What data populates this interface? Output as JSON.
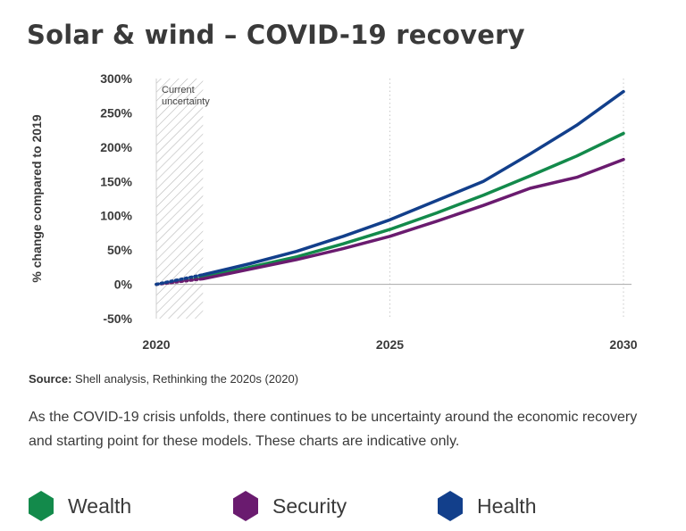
{
  "title": "Solar & wind – COVID-19 recovery",
  "chart_data": {
    "type": "line",
    "ylabel": "% change compared to 2019",
    "y_ticks": [
      "300%",
      "250%",
      "200%",
      "150%",
      "100%",
      "50%",
      "0%",
      "-50%"
    ],
    "y_tick_values": [
      300,
      250,
      200,
      150,
      100,
      50,
      0,
      -50
    ],
    "ylim": [
      -50,
      300
    ],
    "x_ticks": [
      "2020",
      "2025",
      "2030"
    ],
    "x_tick_values": [
      2020,
      2025,
      2030
    ],
    "xlim": [
      2020,
      2030
    ],
    "vertical_gridlines": "dotted at 2025 and 2030",
    "shaded_region": {
      "from": 2020,
      "to": 2021,
      "label": "Current uncertainty"
    },
    "series": [
      {
        "name": "Wealth",
        "color": "#138a4b",
        "x": [
          2020,
          2021,
          2022,
          2023,
          2024,
          2025,
          2026,
          2027,
          2028,
          2029,
          2030
        ],
        "values": [
          0,
          10,
          25,
          40,
          59,
          80,
          104,
          130,
          158,
          187,
          220
        ]
      },
      {
        "name": "Security",
        "color": "#6a1b6f",
        "x": [
          2020,
          2021,
          2022,
          2023,
          2024,
          2025,
          2026,
          2027,
          2028,
          2029,
          2030
        ],
        "values": [
          0,
          8,
          22,
          36,
          52,
          70,
          92,
          115,
          140,
          156,
          182
        ]
      },
      {
        "name": "Health",
        "color": "#123f8b",
        "x": [
          2020,
          2021,
          2022,
          2023,
          2024,
          2025,
          2026,
          2027,
          2028,
          2029,
          2030
        ],
        "values": [
          0,
          14,
          30,
          48,
          70,
          94,
          122,
          150,
          190,
          232,
          281
        ]
      }
    ]
  },
  "source": {
    "label": "Source:",
    "text": " Shell analysis, Rethinking the 2020s (2020)"
  },
  "description": "As the COVID-19 crisis unfolds, there continues to be uncertainty around the economic recovery and starting point for these models. These charts are indicative only.",
  "legend": [
    {
      "name": "Wealth",
      "color": "#138a4b"
    },
    {
      "name": "Security",
      "color": "#6a1b6f"
    },
    {
      "name": "Health",
      "color": "#123f8b"
    }
  ]
}
